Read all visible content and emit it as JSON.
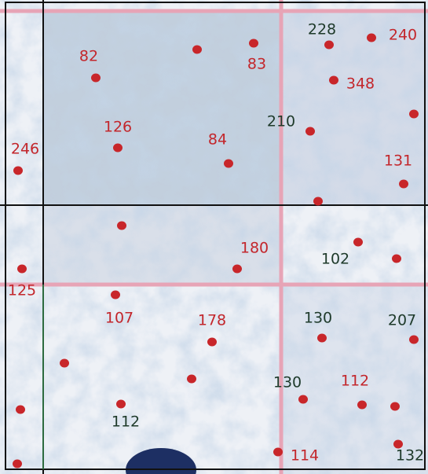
{
  "labels": [
    {
      "text": "82",
      "color": "#c3262b"
    },
    {
      "text": "83",
      "color": "#c3262b"
    },
    {
      "text": "228",
      "color": "#1e3a2a"
    },
    {
      "text": "240",
      "color": "#c3262b"
    },
    {
      "text": "348",
      "color": "#c3262b"
    },
    {
      "text": "126",
      "color": "#c3262b"
    },
    {
      "text": "210",
      "color": "#1e3a2a"
    },
    {
      "text": "84",
      "color": "#c3262b"
    },
    {
      "text": "246",
      "color": "#c3262b"
    },
    {
      "text": "131",
      "color": "#c3262b"
    },
    {
      "text": "180",
      "color": "#c3262b"
    },
    {
      "text": "102",
      "color": "#1e3a2a"
    },
    {
      "text": "125",
      "color": "#c3262b"
    },
    {
      "text": "107",
      "color": "#c3262b"
    },
    {
      "text": "178",
      "color": "#c3262b"
    },
    {
      "text": "130",
      "color": "#1e3a2a"
    },
    {
      "text": "207",
      "color": "#1e3a2a"
    },
    {
      "text": "130",
      "color": "#1e3a2a"
    },
    {
      "text": "112",
      "color": "#c3262b"
    },
    {
      "text": "112",
      "color": "#1e3a2a"
    },
    {
      "text": "114",
      "color": "#c3262b"
    },
    {
      "text": "132",
      "color": "#1e3a2a"
    }
  ]
}
